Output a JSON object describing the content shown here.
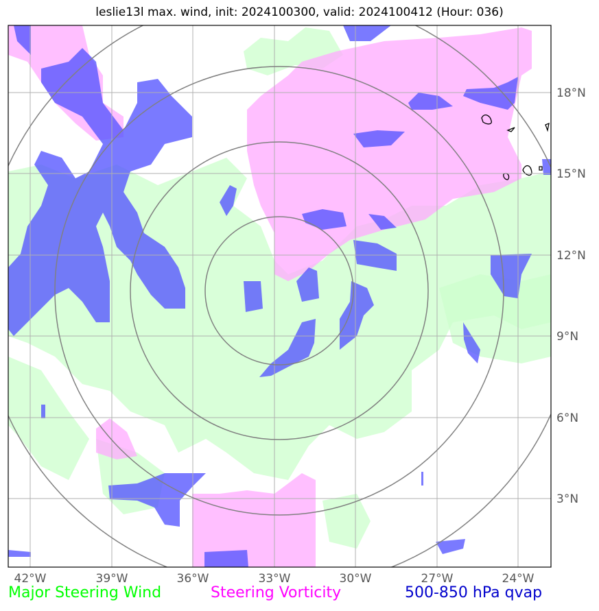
{
  "title": "leslie13l max. wind, init: 2024100300, valid: 2024100412 (Hour: 036)",
  "map": {
    "lon_range": [
      -42.75,
      -22.75
    ],
    "lat_range": [
      0.5,
      20.5
    ],
    "lon_ticks": [
      -42,
      -39,
      -36,
      -33,
      -30,
      -27,
      -24
    ],
    "lat_ticks": [
      3,
      6,
      9,
      12,
      15,
      18
    ],
    "lon_tick_labels": [
      "42°W",
      "39°W",
      "36°W",
      "33°W",
      "30°W",
      "27°W",
      "24°W"
    ],
    "lat_tick_labels": [
      "3°N",
      "6°N",
      "9°N",
      "12°N",
      "15°N",
      "18°N"
    ],
    "grid": true,
    "range_rings": {
      "center": [
        -33,
        10.5
      ],
      "radii_deg": [
        2.7,
        5.5,
        8.3,
        11.0
      ]
    },
    "colors": {
      "major_steering_wind": "#00ff00",
      "steering_vorticity": "#ff00ff",
      "qvap": "#0000cc"
    }
  },
  "legend": {
    "wind": "Major Steering Wind",
    "vorticity": "Steering Vorticity",
    "qvap": "500-850 hPa qvap"
  }
}
